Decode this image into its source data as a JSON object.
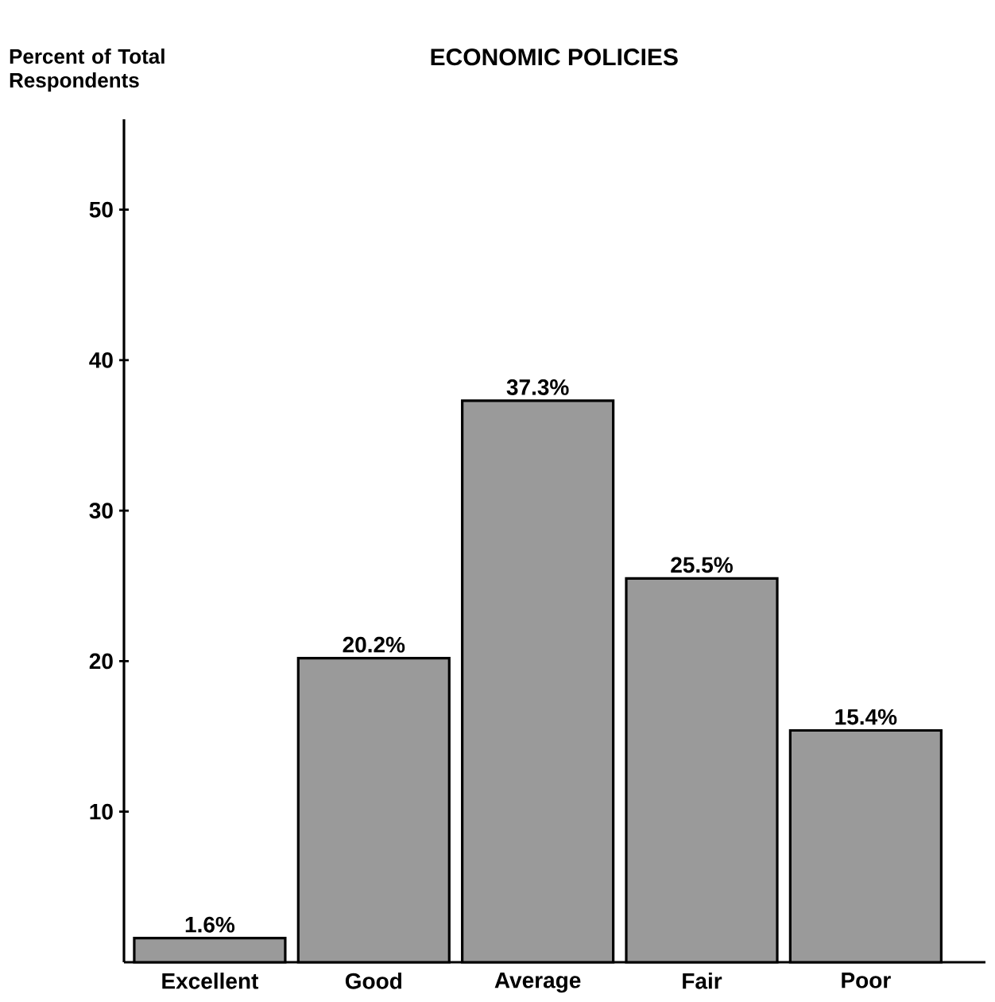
{
  "chart_data": {
    "type": "bar",
    "title": "ECONOMIC POLICIES",
    "ylabel": "Percent of Total Respondents",
    "categories": [
      "Excellent",
      "Good",
      "Average",
      "Fair",
      "Poor"
    ],
    "values": [
      1.6,
      20.2,
      37.3,
      25.5,
      15.4
    ],
    "value_labels": [
      "1.6%",
      "20.2%",
      "37.3%",
      "25.5%",
      "15.4%"
    ],
    "color": "#9a9a9a",
    "ylim": [
      0,
      56
    ],
    "yticks": [
      10,
      20,
      30,
      40,
      50
    ],
    "grid": false
  }
}
